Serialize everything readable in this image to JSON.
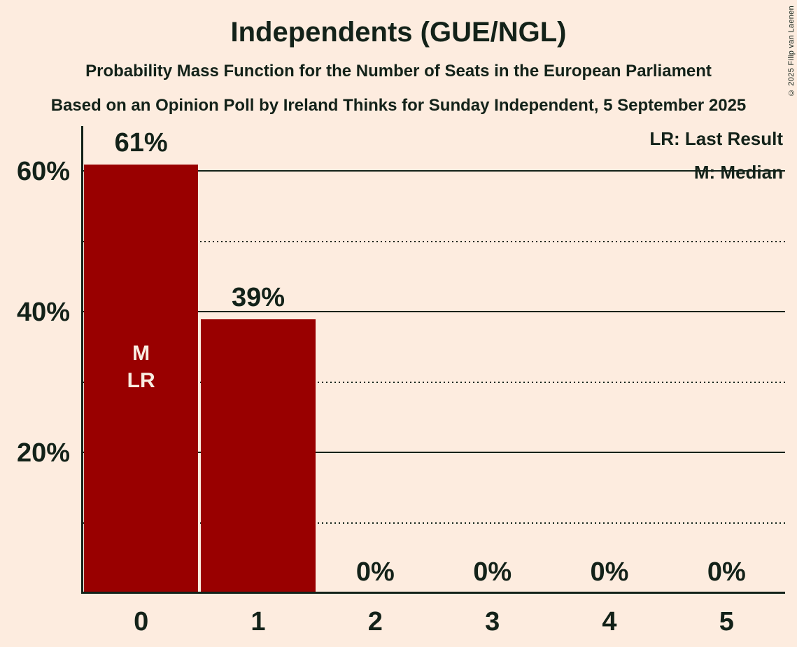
{
  "title": "Independents (GUE/NGL)",
  "subtitle": "Probability Mass Function for the Number of Seats in the European Parliament",
  "source": "Based on an Opinion Poll by Ireland Thinks for Sunday Independent, 5 September 2025",
  "copyright": "© 2025 Filip van Laenen",
  "legend": {
    "lr": "LR: Last Result",
    "m": "M: Median"
  },
  "colors": {
    "background": "#fdecdf",
    "bar": "#990000",
    "ink": "#132219",
    "bar_text": "#f9ede1"
  },
  "chart_data": {
    "type": "bar",
    "categories": [
      "0",
      "1",
      "2",
      "3",
      "4",
      "5"
    ],
    "values": [
      61,
      39,
      0,
      0,
      0,
      0
    ],
    "bar_labels": [
      "61%",
      "39%",
      "0%",
      "0%",
      "0%",
      "0%"
    ],
    "annotations": [
      {
        "bar": 0,
        "lines": [
          "M",
          "LR"
        ]
      }
    ],
    "y_ticks": [
      {
        "value": 60,
        "label": "60%"
      },
      {
        "value": 40,
        "label": "40%"
      },
      {
        "value": 20,
        "label": "20%"
      }
    ],
    "y_minor_ticks": [
      50,
      30,
      10
    ],
    "ylim": [
      0,
      66.5
    ],
    "xlabel": "",
    "ylabel": "",
    "grid": "solid major lines, dotted minor lines",
    "legend_position": "top-right"
  }
}
